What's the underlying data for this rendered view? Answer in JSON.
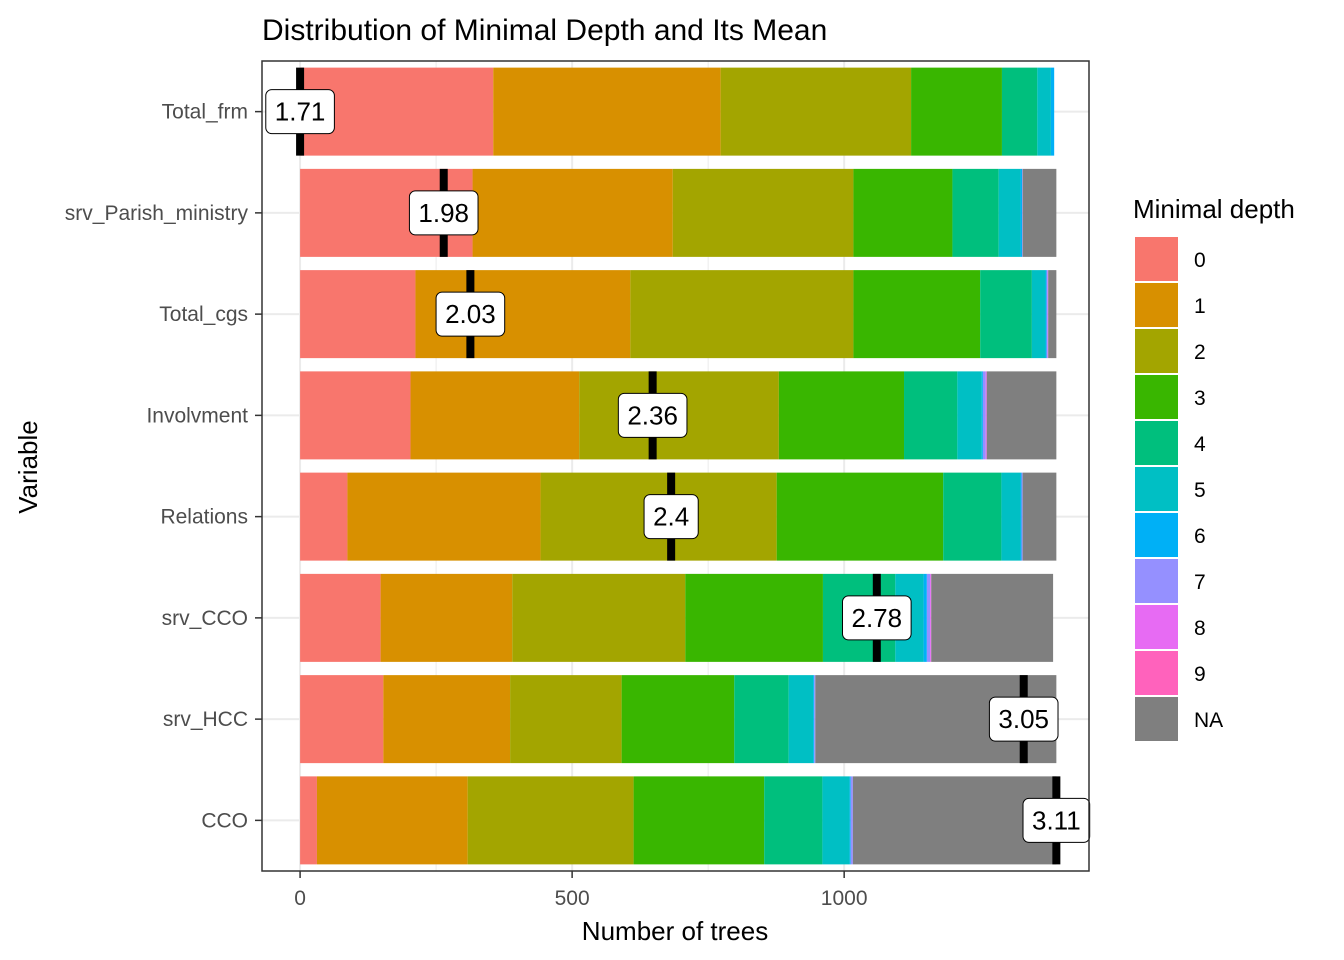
{
  "chart_data": {
    "type": "bar",
    "stacked": true,
    "orientation": "horizontal",
    "title": "Distribution of Minimal Depth and Its Mean",
    "xlabel": "Number of trees",
    "ylabel": "Variable",
    "xlim": [
      -70,
      1450
    ],
    "xticks": [
      0,
      500,
      1000
    ],
    "grid": true,
    "legend": {
      "title": "Minimal depth",
      "position": "right",
      "entries": [
        {
          "label": "0",
          "color": "#F8766D"
        },
        {
          "label": "1",
          "color": "#D89000"
        },
        {
          "label": "2",
          "color": "#A3A500"
        },
        {
          "label": "3",
          "color": "#39B600"
        },
        {
          "label": "4",
          "color": "#00BF7D"
        },
        {
          "label": "5",
          "color": "#00BFC4"
        },
        {
          "label": "6",
          "color": "#00B0F6"
        },
        {
          "label": "7",
          "color": "#9590FF"
        },
        {
          "label": "8",
          "color": "#E76BF3"
        },
        {
          "label": "9",
          "color": "#FF62BC"
        },
        {
          "label": "NA",
          "color": "#7F7F7F"
        }
      ]
    },
    "categories": [
      "Total_frm",
      "srv_Parish_ministry",
      "Total_cgs",
      "Involvment",
      "Relations",
      "srv_CCO",
      "srv_HCC",
      "CCO"
    ],
    "series": [
      {
        "name": "0",
        "values": [
          355,
          317,
          212,
          203,
          87,
          148,
          153,
          31
        ]
      },
      {
        "name": "1",
        "values": [
          418,
          368,
          395,
          310,
          355,
          242,
          233,
          277
        ]
      },
      {
        "name": "2",
        "values": [
          350,
          332,
          410,
          367,
          434,
          318,
          205,
          305
        ]
      },
      {
        "name": "3",
        "values": [
          167,
          182,
          233,
          230,
          306,
          253,
          207,
          240
        ]
      },
      {
        "name": "4",
        "values": [
          65,
          85,
          95,
          98,
          107,
          133,
          100,
          107
        ]
      },
      {
        "name": "5",
        "values": [
          25,
          40,
          25,
          45,
          35,
          52,
          45,
          50
        ]
      },
      {
        "name": "6",
        "values": [
          6,
          3,
          2,
          2,
          2,
          6,
          2,
          2
        ]
      },
      {
        "name": "7",
        "values": [
          0,
          1,
          2,
          5,
          2,
          6,
          2,
          4
        ]
      },
      {
        "name": "8",
        "values": [
          0,
          0,
          1,
          2,
          0,
          2,
          0,
          0
        ]
      },
      {
        "name": "9",
        "values": [
          0,
          0,
          0,
          0,
          0,
          0,
          0,
          0
        ]
      },
      {
        "name": "NA",
        "values": [
          0,
          62,
          15,
          128,
          62,
          224,
          443,
          374
        ]
      }
    ],
    "means": [
      {
        "label": "1.71",
        "value": 1.71,
        "x": 0
      },
      {
        "label": "1.98",
        "value": 1.98,
        "x": 264
      },
      {
        "label": "2.03",
        "value": 2.03,
        "x": 313
      },
      {
        "label": "2.36",
        "value": 2.36,
        "x": 648
      },
      {
        "label": "2.4",
        "value": 2.4,
        "x": 682
      },
      {
        "label": "2.78",
        "value": 2.78,
        "x": 1060
      },
      {
        "label": "3.05",
        "value": 3.05,
        "x": 1330
      },
      {
        "label": "3.11",
        "value": 3.11,
        "x": 1390
      }
    ]
  }
}
